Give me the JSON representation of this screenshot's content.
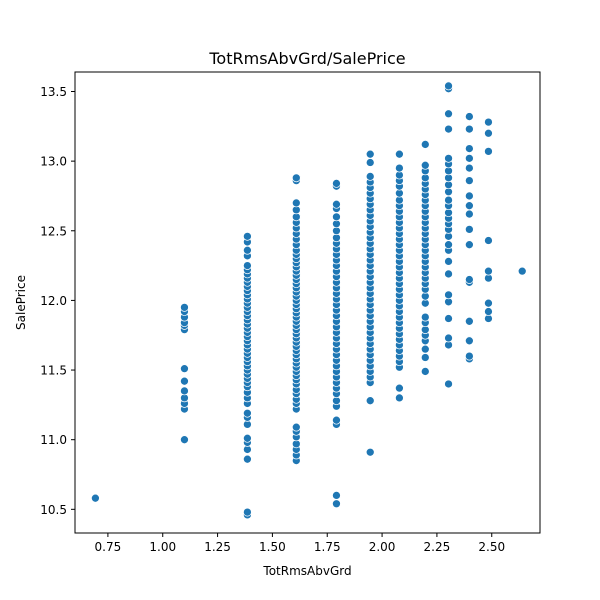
{
  "chart_data": {
    "type": "scatter",
    "title": "TotRmsAbvGrd/SalePrice",
    "xlabel": "TotRmsAbvGrd",
    "ylabel": "SalePrice",
    "xlim": [
      0.6,
      2.72
    ],
    "ylim": [
      10.33,
      13.64
    ],
    "xticks": [
      0.75,
      1.0,
      1.25,
      1.5,
      1.75,
      2.0,
      2.25,
      2.5
    ],
    "xtick_labels": [
      "0.75",
      "1.00",
      "1.25",
      "1.50",
      "1.75",
      "2.00",
      "2.25",
      "2.50"
    ],
    "yticks": [
      10.5,
      11.0,
      11.5,
      12.0,
      12.5,
      13.0,
      13.5
    ],
    "ytick_labels": [
      "10.5",
      "11.0",
      "11.5",
      "12.0",
      "12.5",
      "13.0",
      "13.5"
    ],
    "grid": false,
    "marker_color": "#1f77b4",
    "series": [
      {
        "x": 0.693,
        "y": [
          10.58
        ]
      },
      {
        "x": 1.099,
        "y": [
          11.0,
          11.22,
          11.26,
          11.3,
          11.35,
          11.42,
          11.51,
          11.79,
          11.82,
          11.84,
          11.88,
          11.92,
          11.95
        ]
      },
      {
        "x": 1.386,
        "y": [
          10.46,
          10.48,
          10.86,
          10.93,
          10.98,
          11.01,
          11.11,
          11.16,
          11.19,
          11.26,
          11.3,
          11.34,
          11.38,
          11.41,
          11.44,
          11.47,
          11.5,
          11.53,
          11.56,
          11.59,
          11.62,
          11.65,
          11.68,
          11.71,
          11.74,
          11.77,
          11.8,
          11.83,
          11.86,
          11.89,
          11.92,
          11.95,
          11.98,
          12.01,
          12.04,
          12.07,
          12.1,
          12.13,
          12.16,
          12.19,
          12.22,
          12.25,
          12.32,
          12.36,
          12.42,
          12.46
        ]
      },
      {
        "x": 1.609,
        "y": [
          10.85,
          10.89,
          10.93,
          10.97,
          11.02,
          11.06,
          11.09,
          11.22,
          11.26,
          11.29,
          11.33,
          11.36,
          11.4,
          11.43,
          11.46,
          11.49,
          11.52,
          11.55,
          11.58,
          11.61,
          11.64,
          11.67,
          11.7,
          11.73,
          11.76,
          11.79,
          11.82,
          11.85,
          11.88,
          11.91,
          11.94,
          11.97,
          12.0,
          12.03,
          12.06,
          12.09,
          12.12,
          12.15,
          12.18,
          12.21,
          12.24,
          12.27,
          12.3,
          12.33,
          12.36,
          12.4,
          12.44,
          12.48,
          12.52,
          12.56,
          12.6,
          12.65,
          12.7,
          12.86,
          12.88
        ]
      },
      {
        "x": 1.792,
        "y": [
          10.54,
          10.6,
          11.11,
          11.14,
          11.24,
          11.28,
          11.33,
          11.37,
          11.41,
          11.45,
          11.49,
          11.53,
          11.57,
          11.61,
          11.65,
          11.69,
          11.73,
          11.77,
          11.81,
          11.85,
          11.89,
          11.93,
          11.97,
          12.01,
          12.05,
          12.09,
          12.13,
          12.17,
          12.21,
          12.25,
          12.29,
          12.33,
          12.37,
          12.41,
          12.45,
          12.5,
          12.55,
          12.6,
          12.66,
          12.69,
          12.82,
          12.84
        ]
      },
      {
        "x": 1.946,
        "y": [
          10.91,
          11.28,
          11.41,
          11.45,
          11.49,
          11.53,
          11.57,
          11.61,
          11.65,
          11.69,
          11.73,
          11.77,
          11.81,
          11.85,
          11.89,
          11.93,
          11.97,
          12.01,
          12.05,
          12.09,
          12.13,
          12.17,
          12.21,
          12.25,
          12.29,
          12.33,
          12.37,
          12.41,
          12.45,
          12.49,
          12.53,
          12.57,
          12.61,
          12.65,
          12.69,
          12.73,
          12.77,
          12.81,
          12.85,
          12.89,
          12.99,
          13.05
        ]
      },
      {
        "x": 2.079,
        "y": [
          11.3,
          11.37,
          11.52,
          11.56,
          11.6,
          11.64,
          11.68,
          11.72,
          11.76,
          11.8,
          11.84,
          11.88,
          11.92,
          11.96,
          12.0,
          12.04,
          12.08,
          12.12,
          12.16,
          12.2,
          12.24,
          12.28,
          12.32,
          12.36,
          12.4,
          12.44,
          12.48,
          12.52,
          12.56,
          12.6,
          12.64,
          12.68,
          12.72,
          12.77,
          12.82,
          12.86,
          12.9,
          12.95,
          13.05
        ]
      },
      {
        "x": 2.197,
        "y": [
          11.49,
          11.59,
          11.65,
          11.71,
          11.75,
          11.79,
          11.84,
          11.88,
          11.98,
          12.03,
          12.08,
          12.12,
          12.16,
          12.2,
          12.24,
          12.28,
          12.32,
          12.36,
          12.4,
          12.44,
          12.48,
          12.52,
          12.56,
          12.6,
          12.64,
          12.68,
          12.72,
          12.76,
          12.8,
          12.84,
          12.88,
          12.93,
          12.97,
          13.12
        ]
      },
      {
        "x": 2.303,
        "y": [
          11.4,
          11.68,
          11.73,
          11.87,
          11.99,
          12.04,
          12.19,
          12.28,
          12.36,
          12.4,
          12.46,
          12.51,
          12.55,
          12.59,
          12.63,
          12.68,
          12.72,
          12.78,
          12.83,
          12.88,
          12.93,
          12.98,
          13.02,
          13.23,
          13.34,
          13.52,
          13.54
        ]
      },
      {
        "x": 2.398,
        "y": [
          11.58,
          11.6,
          11.71,
          11.85,
          12.13,
          12.15,
          12.4,
          12.51,
          12.62,
          12.68,
          12.75,
          12.86,
          12.95,
          13.02,
          13.09,
          13.23,
          13.32
        ]
      },
      {
        "x": 2.485,
        "y": [
          11.87,
          11.92,
          11.98,
          12.16,
          12.21,
          12.43,
          13.07,
          13.2,
          13.28
        ]
      },
      {
        "x": 2.639,
        "y": [
          12.21
        ]
      }
    ]
  }
}
